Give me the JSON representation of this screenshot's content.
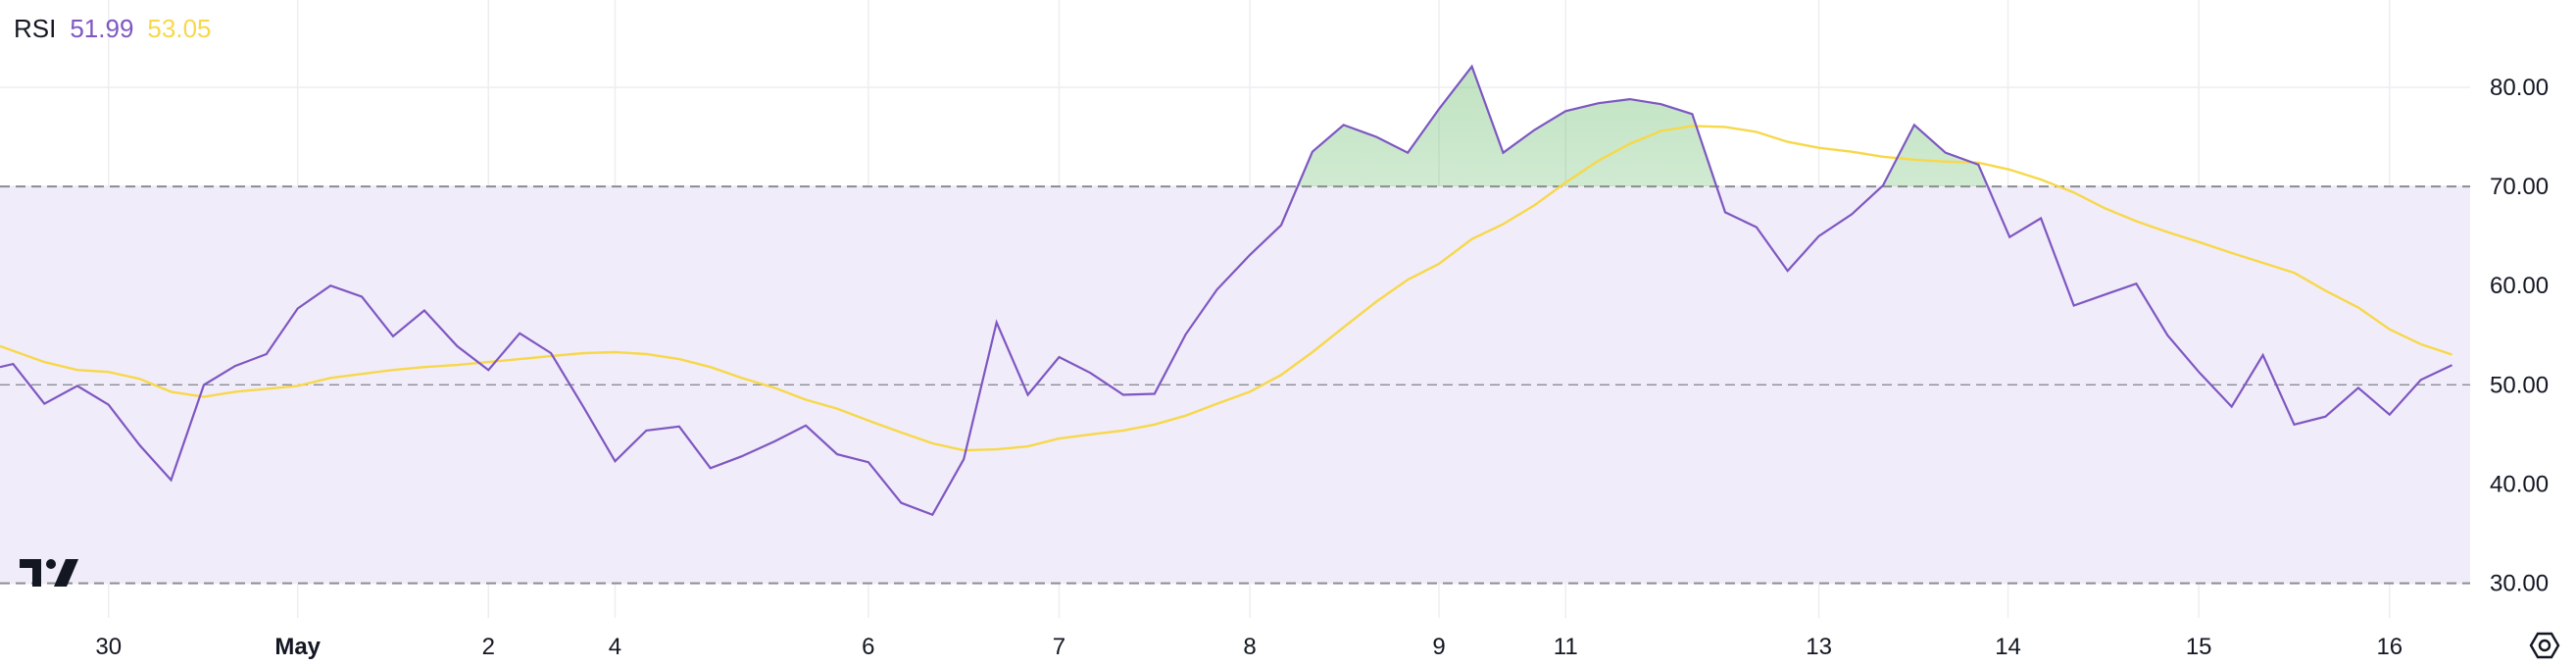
{
  "legend": {
    "name": "RSI",
    "value_rsi": "51.99",
    "value_ma": "53.05"
  },
  "colors": {
    "rsi": "#7e57c2",
    "ma": "#f7d84a",
    "band_fill": "#f1ecf9",
    "overbought_fill": "#4caf50",
    "grid": "#eeeef1",
    "dashed": "#8a8d94"
  },
  "icons": {
    "logo": "tradingview-logo-icon",
    "settings": "settings-gear-icon"
  },
  "chart_data": {
    "type": "line",
    "title": "RSI",
    "ylim": [
      26.5,
      88.8
    ],
    "y_ticks": [
      "80.00",
      "70.00",
      "60.00",
      "50.00",
      "40.00",
      "30.00"
    ],
    "y_tick_values": [
      80,
      70,
      60,
      50,
      40,
      30
    ],
    "levels": {
      "upper": 70,
      "middle": 50,
      "lower": 30
    },
    "x_range": [
      0,
      1502
    ],
    "x_ticks": [
      {
        "label": "30",
        "x": 66,
        "bold": false
      },
      {
        "label": "May",
        "x": 181,
        "bold": true
      },
      {
        "label": "2",
        "x": 297,
        "bold": false
      },
      {
        "label": "4",
        "x": 374,
        "bold": false
      },
      {
        "label": "6",
        "x": 528,
        "bold": false
      },
      {
        "label": "7",
        "x": 644,
        "bold": false
      },
      {
        "label": "8",
        "x": 760,
        "bold": false
      },
      {
        "label": "9",
        "x": 875,
        "bold": false
      },
      {
        "label": "11",
        "x": 952,
        "bold": false
      },
      {
        "label": "13",
        "x": 1106,
        "bold": false
      },
      {
        "label": "14",
        "x": 1221,
        "bold": false
      },
      {
        "label": "15",
        "x": 1337,
        "bold": false
      },
      {
        "label": "16",
        "x": 1453,
        "bold": false
      }
    ],
    "series": [
      {
        "name": "RSI",
        "x": [
          0,
          8,
          27,
          47,
          66,
          85,
          104,
          124,
          143,
          162,
          181,
          201,
          220,
          239,
          258,
          278,
          297,
          316,
          335,
          355,
          374,
          393,
          413,
          432,
          451,
          471,
          490,
          509,
          528,
          548,
          567,
          586,
          606,
          625,
          644,
          663,
          683,
          702,
          721,
          740,
          760,
          779,
          798,
          817,
          837,
          856,
          875,
          895,
          914,
          933,
          952,
          972,
          991,
          1010,
          1029,
          1049,
          1068,
          1087,
          1106,
          1126,
          1145,
          1164,
          1183,
          1203,
          1222,
          1241,
          1261,
          1280,
          1299,
          1318,
          1337,
          1357,
          1376,
          1395,
          1414,
          1434,
          1453,
          1472,
          1491
        ],
        "values": [
          51.8,
          52.1,
          48.1,
          49.9,
          48.0,
          43.9,
          40.4,
          50.0,
          51.9,
          53.1,
          57.7,
          60.0,
          58.9,
          54.9,
          57.5,
          53.9,
          51.5,
          55.2,
          53.2,
          47.7,
          42.3,
          45.4,
          45.8,
          41.6,
          42.8,
          44.3,
          45.9,
          43.0,
          42.2,
          38.1,
          36.9,
          42.5,
          56.3,
          49.0,
          52.8,
          51.2,
          49.0,
          49.1,
          55.1,
          59.6,
          63.1,
          66.1,
          73.5,
          76.2,
          75.0,
          73.4,
          77.8,
          82.1,
          73.4,
          75.7,
          77.6,
          78.4,
          78.8,
          78.3,
          77.3,
          67.4,
          65.9,
          61.5,
          65.0,
          67.2,
          70.1,
          76.2,
          73.4,
          72.2,
          64.9,
          66.8,
          58.0,
          59.1,
          60.2,
          55.0,
          51.3,
          47.8,
          53.0,
          46.0,
          46.8,
          49.7,
          47.0,
          50.5,
          51.99
        ]
      },
      {
        "name": "MA",
        "x": [
          0,
          27,
          47,
          66,
          85,
          104,
          124,
          143,
          162,
          181,
          201,
          220,
          239,
          258,
          278,
          297,
          316,
          335,
          355,
          374,
          393,
          413,
          432,
          451,
          471,
          490,
          509,
          528,
          548,
          567,
          586,
          606,
          625,
          644,
          663,
          683,
          702,
          721,
          740,
          760,
          779,
          798,
          817,
          837,
          856,
          875,
          895,
          914,
          933,
          952,
          972,
          991,
          1010,
          1029,
          1049,
          1068,
          1087,
          1106,
          1126,
          1145,
          1164,
          1183,
          1203,
          1222,
          1241,
          1261,
          1280,
          1299,
          1318,
          1337,
          1357,
          1376,
          1395,
          1414,
          1434,
          1453,
          1472,
          1491
        ],
        "values": [
          53.9,
          52.3,
          51.5,
          51.3,
          50.6,
          49.3,
          48.8,
          49.3,
          49.6,
          49.9,
          50.7,
          51.1,
          51.5,
          51.8,
          52.0,
          52.3,
          52.6,
          52.9,
          53.2,
          53.3,
          53.1,
          52.6,
          51.8,
          50.7,
          49.7,
          48.5,
          47.6,
          46.4,
          45.2,
          44.1,
          43.4,
          43.5,
          43.8,
          44.6,
          45.0,
          45.4,
          46.0,
          46.9,
          48.1,
          49.3,
          51.0,
          53.3,
          55.8,
          58.4,
          60.6,
          62.2,
          64.7,
          66.2,
          68.1,
          70.4,
          72.6,
          74.3,
          75.6,
          76.1,
          76.0,
          75.5,
          74.5,
          73.9,
          73.5,
          73.0,
          72.7,
          72.5,
          72.4,
          71.7,
          70.7,
          69.4,
          67.8,
          66.5,
          65.4,
          64.4,
          63.3,
          62.3,
          61.3,
          59.5,
          57.8,
          55.6,
          54.1,
          53.05
        ]
      }
    ],
    "grid": true
  }
}
